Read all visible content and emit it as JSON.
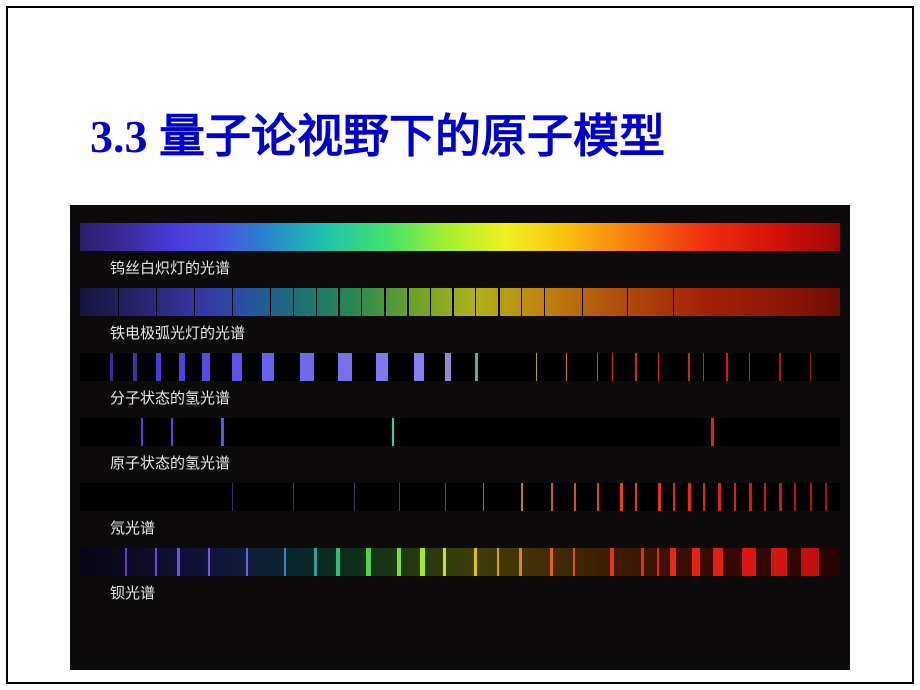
{
  "page": {
    "title": "3.3  量子论视野下的原子模型",
    "title_color": "#0000cc",
    "title_fontsize": 46,
    "background": "#ffffff",
    "spectra_background": "#0c0a0a"
  },
  "spectra": [
    {
      "id": "tungsten",
      "label": "钨丝白炽灯的光谱",
      "type": "continuous",
      "gradient": [
        {
          "stop": 0.0,
          "color": "#2a1e6e"
        },
        {
          "stop": 0.12,
          "color": "#4a3ad8"
        },
        {
          "stop": 0.24,
          "color": "#2a80d0"
        },
        {
          "stop": 0.4,
          "color": "#40e070"
        },
        {
          "stop": 0.56,
          "color": "#f0f020"
        },
        {
          "stop": 0.72,
          "color": "#f88010"
        },
        {
          "stop": 1.0,
          "color": "#a00808"
        }
      ]
    },
    {
      "id": "iron-arc",
      "label": "铁电极弧光灯的光谱",
      "type": "continuous-with-lines",
      "base": "continuous-faded",
      "absorption_lines": [
        {
          "pos": 0.05,
          "color": "#000000",
          "w": 1
        },
        {
          "pos": 0.1,
          "color": "#000000",
          "w": 1
        },
        {
          "pos": 0.15,
          "color": "#000000",
          "w": 1
        },
        {
          "pos": 0.2,
          "color": "#000000",
          "w": 1
        },
        {
          "pos": 0.25,
          "color": "#000000",
          "w": 1
        },
        {
          "pos": 0.28,
          "color": "#000000",
          "w": 1
        },
        {
          "pos": 0.31,
          "color": "#000000",
          "w": 1
        },
        {
          "pos": 0.34,
          "color": "#000000",
          "w": 2
        },
        {
          "pos": 0.37,
          "color": "#000000",
          "w": 1
        },
        {
          "pos": 0.4,
          "color": "#000000",
          "w": 2
        },
        {
          "pos": 0.43,
          "color": "#000000",
          "w": 2
        },
        {
          "pos": 0.46,
          "color": "#000000",
          "w": 1
        },
        {
          "pos": 0.49,
          "color": "#000000",
          "w": 2
        },
        {
          "pos": 0.52,
          "color": "#000000",
          "w": 1
        },
        {
          "pos": 0.55,
          "color": "#000000",
          "w": 2
        },
        {
          "pos": 0.58,
          "color": "#000000",
          "w": 1
        },
        {
          "pos": 0.61,
          "color": "#000000",
          "w": 1
        },
        {
          "pos": 0.66,
          "color": "#000000",
          "w": 1
        },
        {
          "pos": 0.72,
          "color": "#000000",
          "w": 1
        },
        {
          "pos": 0.78,
          "color": "#000000",
          "w": 1
        }
      ]
    },
    {
      "id": "h2-molecular",
      "label": "分子状态的氢光谱",
      "type": "emission",
      "lines": [
        {
          "pos": 0.04,
          "color": "#3a2a9a",
          "w": 3
        },
        {
          "pos": 0.07,
          "color": "#4030b0",
          "w": 4
        },
        {
          "pos": 0.1,
          "color": "#4a3ad8",
          "w": 5
        },
        {
          "pos": 0.13,
          "color": "#5040e0",
          "w": 6
        },
        {
          "pos": 0.16,
          "color": "#5a48e8",
          "w": 8
        },
        {
          "pos": 0.2,
          "color": "#6050ec",
          "w": 10
        },
        {
          "pos": 0.24,
          "color": "#6860ee",
          "w": 12
        },
        {
          "pos": 0.29,
          "color": "#7068ee",
          "w": 14
        },
        {
          "pos": 0.34,
          "color": "#7a70ee",
          "w": 14
        },
        {
          "pos": 0.39,
          "color": "#8078ee",
          "w": 12
        },
        {
          "pos": 0.44,
          "color": "#8880ee",
          "w": 10
        },
        {
          "pos": 0.48,
          "color": "#9088d0",
          "w": 6
        },
        {
          "pos": 0.52,
          "color": "#80a070",
          "w": 3
        },
        {
          "pos": 0.6,
          "color": "#c0a010",
          "w": 1
        },
        {
          "pos": 0.64,
          "color": "#d08008",
          "w": 1
        },
        {
          "pos": 0.68,
          "color": "#d84008",
          "w": 1
        },
        {
          "pos": 0.7,
          "color": "#d83008",
          "w": 1
        },
        {
          "pos": 0.73,
          "color": "#e02808",
          "w": 2
        },
        {
          "pos": 0.76,
          "color": "#e02808",
          "w": 1
        },
        {
          "pos": 0.8,
          "color": "#e02008",
          "w": 2
        },
        {
          "pos": 0.82,
          "color": "#e02008",
          "w": 1
        },
        {
          "pos": 0.85,
          "color": "#e01808",
          "w": 2
        },
        {
          "pos": 0.88,
          "color": "#d01808",
          "w": 1
        },
        {
          "pos": 0.92,
          "color": "#c01008",
          "w": 2
        },
        {
          "pos": 0.96,
          "color": "#b01008",
          "w": 1
        }
      ]
    },
    {
      "id": "h-atomic",
      "label": "原子状态的氢光谱",
      "type": "emission",
      "lines": [
        {
          "pos": 0.08,
          "color": "#5a3aee",
          "w": 2
        },
        {
          "pos": 0.12,
          "color": "#6040ee",
          "w": 2
        },
        {
          "pos": 0.185,
          "color": "#4a60ee",
          "w": 3
        },
        {
          "pos": 0.41,
          "color": "#20d0c0",
          "w": 2
        },
        {
          "pos": 0.83,
          "color": "#f02010",
          "w": 3
        }
      ]
    },
    {
      "id": "neon",
      "label": "氖光谱",
      "type": "emission",
      "lines": [
        {
          "pos": 0.2,
          "color": "#402a70",
          "w": 1
        },
        {
          "pos": 0.28,
          "color": "#403070",
          "w": 1
        },
        {
          "pos": 0.36,
          "color": "#304060",
          "w": 1
        },
        {
          "pos": 0.42,
          "color": "#305050",
          "w": 1
        },
        {
          "pos": 0.48,
          "color": "#605020",
          "w": 1
        },
        {
          "pos": 0.53,
          "color": "#908010",
          "w": 1
        },
        {
          "pos": 0.58,
          "color": "#c08008",
          "w": 2
        },
        {
          "pos": 0.62,
          "color": "#d06008",
          "w": 2
        },
        {
          "pos": 0.65,
          "color": "#e05008",
          "w": 2
        },
        {
          "pos": 0.68,
          "color": "#e84808",
          "w": 2
        },
        {
          "pos": 0.71,
          "color": "#f04008",
          "w": 3
        },
        {
          "pos": 0.73,
          "color": "#f03808",
          "w": 2
        },
        {
          "pos": 0.76,
          "color": "#f03008",
          "w": 3
        },
        {
          "pos": 0.78,
          "color": "#f02808",
          "w": 2
        },
        {
          "pos": 0.8,
          "color": "#f02808",
          "w": 3
        },
        {
          "pos": 0.82,
          "color": "#e82808",
          "w": 2
        },
        {
          "pos": 0.84,
          "color": "#e82008",
          "w": 3
        },
        {
          "pos": 0.86,
          "color": "#e02008",
          "w": 2
        },
        {
          "pos": 0.88,
          "color": "#e01808",
          "w": 3
        },
        {
          "pos": 0.9,
          "color": "#d81808",
          "w": 2
        },
        {
          "pos": 0.92,
          "color": "#d01808",
          "w": 3
        },
        {
          "pos": 0.94,
          "color": "#c81008",
          "w": 2
        },
        {
          "pos": 0.96,
          "color": "#c01008",
          "w": 2
        },
        {
          "pos": 0.98,
          "color": "#b01008",
          "w": 2
        }
      ]
    },
    {
      "id": "barium",
      "label": "钡光谱",
      "type": "emission-continuous",
      "base": "continuous-faded",
      "emission_lines": [
        {
          "pos": 0.06,
          "color": "#6040d0",
          "w": 2
        },
        {
          "pos": 0.1,
          "color": "#6a48e0",
          "w": 2
        },
        {
          "pos": 0.13,
          "color": "#7050e8",
          "w": 3
        },
        {
          "pos": 0.17,
          "color": "#7858e8",
          "w": 2
        },
        {
          "pos": 0.22,
          "color": "#6068e0",
          "w": 2
        },
        {
          "pos": 0.27,
          "color": "#4080d0",
          "w": 2
        },
        {
          "pos": 0.31,
          "color": "#30a0a0",
          "w": 3
        },
        {
          "pos": 0.34,
          "color": "#30c080",
          "w": 4
        },
        {
          "pos": 0.38,
          "color": "#50d050",
          "w": 5
        },
        {
          "pos": 0.42,
          "color": "#80e030",
          "w": 4
        },
        {
          "pos": 0.45,
          "color": "#a8e820",
          "w": 5
        },
        {
          "pos": 0.48,
          "color": "#d0e010",
          "w": 3
        },
        {
          "pos": 0.52,
          "color": "#e0c010",
          "w": 3
        },
        {
          "pos": 0.55,
          "color": "#e8a010",
          "w": 2
        },
        {
          "pos": 0.58,
          "color": "#e88010",
          "w": 3
        },
        {
          "pos": 0.62,
          "color": "#e86010",
          "w": 3
        },
        {
          "pos": 0.65,
          "color": "#e85010",
          "w": 2
        },
        {
          "pos": 0.7,
          "color": "#e83810",
          "w": 4
        },
        {
          "pos": 0.74,
          "color": "#e83010",
          "w": 3
        },
        {
          "pos": 0.76,
          "color": "#e82810",
          "w": 2
        },
        {
          "pos": 0.78,
          "color": "#e82810",
          "w": 6
        },
        {
          "pos": 0.81,
          "color": "#e82010",
          "w": 8
        },
        {
          "pos": 0.84,
          "color": "#e02010",
          "w": 10
        },
        {
          "pos": 0.88,
          "color": "#d81810",
          "w": 14
        },
        {
          "pos": 0.92,
          "color": "#d01810",
          "w": 16
        },
        {
          "pos": 0.96,
          "color": "#c01010",
          "w": 18
        }
      ]
    }
  ]
}
